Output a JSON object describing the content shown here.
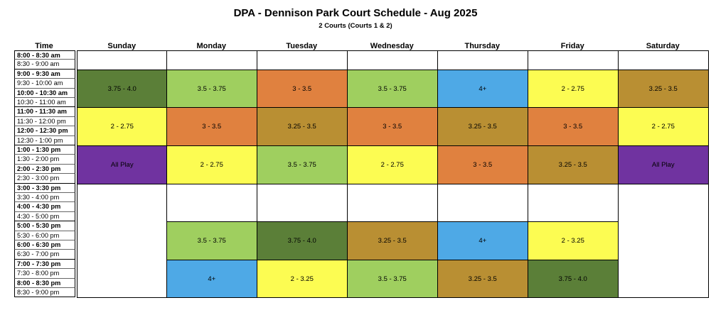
{
  "title": "DPA - Dennison Park Court Schedule - Aug 2025",
  "subtitle": "2 Courts (Courts 1 & 2)",
  "headers": [
    "Time",
    "Sunday",
    "Monday",
    "Tuesday",
    "Wednesday",
    "Thursday",
    "Friday",
    "Saturday"
  ],
  "times": [
    {
      "label": "8:00 - 8:30 am",
      "bold": true
    },
    {
      "label": "8:30 - 9:00 am",
      "bold": false
    },
    {
      "label": "9:00 - 9:30 am",
      "bold": true
    },
    {
      "label": "9:30 - 10:00 am",
      "bold": false
    },
    {
      "label": "10:00 - 10:30 am",
      "bold": true
    },
    {
      "label": "10:30 - 11:00 am",
      "bold": false
    },
    {
      "label": "11:00 - 11:30 am",
      "bold": true
    },
    {
      "label": "11:30 - 12:00 pm",
      "bold": false
    },
    {
      "label": "12:00 - 12:30 pm",
      "bold": true
    },
    {
      "label": "12:30 - 1:00 pm",
      "bold": false
    },
    {
      "label": "1:00 - 1:30 pm",
      "bold": true
    },
    {
      "label": "1:30 - 2:00 pm",
      "bold": false
    },
    {
      "label": "2:00 - 2:30 pm",
      "bold": true
    },
    {
      "label": "2:30 - 3:00 pm",
      "bold": false
    },
    {
      "label": "3:00 - 3:30 pm",
      "bold": true
    },
    {
      "label": "3:30 - 4:00 pm",
      "bold": false
    },
    {
      "label": "4:00 - 4:30 pm",
      "bold": true
    },
    {
      "label": "4:30 - 5:00 pm",
      "bold": false
    },
    {
      "label": "5:00 - 5:30 pm",
      "bold": true
    },
    {
      "label": "5:30 - 6:00 pm",
      "bold": false
    },
    {
      "label": "6:00 - 6:30 pm",
      "bold": true
    },
    {
      "label": "6:30 - 7:00 pm",
      "bold": false
    },
    {
      "label": "7:00 - 7:30 pm",
      "bold": true
    },
    {
      "label": "7:30 - 8:00 pm",
      "bold": false
    },
    {
      "label": "8:00 - 8:30 pm",
      "bold": true
    },
    {
      "label": "8:30 - 9:00 pm",
      "bold": false
    }
  ],
  "colors": {
    "dark_green": "#5b7f38",
    "light_green": "#9fcf5f",
    "orange": "#e0813f",
    "blue": "#4ea9e6",
    "yellow": "#fcfc52",
    "olive": "#b98f33",
    "purple": "#7033a0",
    "empty": "#ffffff"
  },
  "schedule": [
    {
      "day": 0,
      "start": 0,
      "rows": 2,
      "label": "",
      "color": "empty"
    },
    {
      "day": 1,
      "start": 0,
      "rows": 2,
      "label": "",
      "color": "empty"
    },
    {
      "day": 2,
      "start": 0,
      "rows": 2,
      "label": "",
      "color": "empty"
    },
    {
      "day": 3,
      "start": 0,
      "rows": 2,
      "label": "",
      "color": "empty"
    },
    {
      "day": 4,
      "start": 0,
      "rows": 2,
      "label": "",
      "color": "empty"
    },
    {
      "day": 5,
      "start": 0,
      "rows": 2,
      "label": "",
      "color": "empty"
    },
    {
      "day": 6,
      "start": 0,
      "rows": 2,
      "label": "",
      "color": "empty"
    },
    {
      "day": 0,
      "start": 2,
      "rows": 4,
      "label": "3.75 - 4.0",
      "color": "dark_green"
    },
    {
      "day": 1,
      "start": 2,
      "rows": 4,
      "label": "3.5 - 3.75",
      "color": "light_green"
    },
    {
      "day": 2,
      "start": 2,
      "rows": 4,
      "label": "3 - 3.5",
      "color": "orange"
    },
    {
      "day": 3,
      "start": 2,
      "rows": 4,
      "label": "3.5 - 3.75",
      "color": "light_green"
    },
    {
      "day": 4,
      "start": 2,
      "rows": 4,
      "label": "4+",
      "color": "blue"
    },
    {
      "day": 5,
      "start": 2,
      "rows": 4,
      "label": "2 - 2.75",
      "color": "yellow"
    },
    {
      "day": 6,
      "start": 2,
      "rows": 4,
      "label": "3.25 - 3.5",
      "color": "olive"
    },
    {
      "day": 0,
      "start": 6,
      "rows": 4,
      "label": "2 - 2.75",
      "color": "yellow"
    },
    {
      "day": 1,
      "start": 6,
      "rows": 4,
      "label": "3 - 3.5",
      "color": "orange"
    },
    {
      "day": 2,
      "start": 6,
      "rows": 4,
      "label": "3.25 - 3.5",
      "color": "olive"
    },
    {
      "day": 3,
      "start": 6,
      "rows": 4,
      "label": "3 - 3.5",
      "color": "orange"
    },
    {
      "day": 4,
      "start": 6,
      "rows": 4,
      "label": "3.25 - 3.5",
      "color": "olive"
    },
    {
      "day": 5,
      "start": 6,
      "rows": 4,
      "label": "3 - 3.5",
      "color": "orange"
    },
    {
      "day": 6,
      "start": 6,
      "rows": 4,
      "label": "2 - 2.75",
      "color": "yellow"
    },
    {
      "day": 0,
      "start": 10,
      "rows": 4,
      "label": "All Play",
      "color": "purple"
    },
    {
      "day": 1,
      "start": 10,
      "rows": 4,
      "label": "2 - 2.75",
      "color": "yellow"
    },
    {
      "day": 2,
      "start": 10,
      "rows": 4,
      "label": "3.5 - 3.75",
      "color": "light_green"
    },
    {
      "day": 3,
      "start": 10,
      "rows": 4,
      "label": "2 - 2.75",
      "color": "yellow"
    },
    {
      "day": 4,
      "start": 10,
      "rows": 4,
      "label": "3 - 3.5",
      "color": "orange"
    },
    {
      "day": 5,
      "start": 10,
      "rows": 4,
      "label": "3.25 - 3.5",
      "color": "olive"
    },
    {
      "day": 6,
      "start": 10,
      "rows": 4,
      "label": "All Play",
      "color": "purple"
    },
    {
      "day": 0,
      "start": 14,
      "rows": 12,
      "label": "",
      "color": "empty"
    },
    {
      "day": 1,
      "start": 14,
      "rows": 4,
      "label": "",
      "color": "empty"
    },
    {
      "day": 2,
      "start": 14,
      "rows": 4,
      "label": "",
      "color": "empty"
    },
    {
      "day": 3,
      "start": 14,
      "rows": 4,
      "label": "",
      "color": "empty"
    },
    {
      "day": 4,
      "start": 14,
      "rows": 4,
      "label": "",
      "color": "empty"
    },
    {
      "day": 5,
      "start": 14,
      "rows": 4,
      "label": "",
      "color": "empty"
    },
    {
      "day": 6,
      "start": 14,
      "rows": 12,
      "label": "",
      "color": "empty"
    },
    {
      "day": 1,
      "start": 18,
      "rows": 4,
      "label": "3.5 - 3.75",
      "color": "light_green"
    },
    {
      "day": 2,
      "start": 18,
      "rows": 4,
      "label": "3.75 - 4.0",
      "color": "dark_green"
    },
    {
      "day": 3,
      "start": 18,
      "rows": 4,
      "label": "3.25 - 3.5",
      "color": "olive"
    },
    {
      "day": 4,
      "start": 18,
      "rows": 4,
      "label": "4+",
      "color": "blue"
    },
    {
      "day": 5,
      "start": 18,
      "rows": 4,
      "label": "2 - 3.25",
      "color": "yellow"
    },
    {
      "day": 1,
      "start": 22,
      "rows": 4,
      "label": "4+",
      "color": "blue"
    },
    {
      "day": 2,
      "start": 22,
      "rows": 4,
      "label": "2 - 3.25",
      "color": "yellow"
    },
    {
      "day": 3,
      "start": 22,
      "rows": 4,
      "label": "3.5 - 3.75",
      "color": "light_green"
    },
    {
      "day": 4,
      "start": 22,
      "rows": 4,
      "label": "3.25 - 3.5",
      "color": "olive"
    },
    {
      "day": 5,
      "start": 22,
      "rows": 4,
      "label": "3.75 - 4.0",
      "color": "dark_green"
    }
  ]
}
